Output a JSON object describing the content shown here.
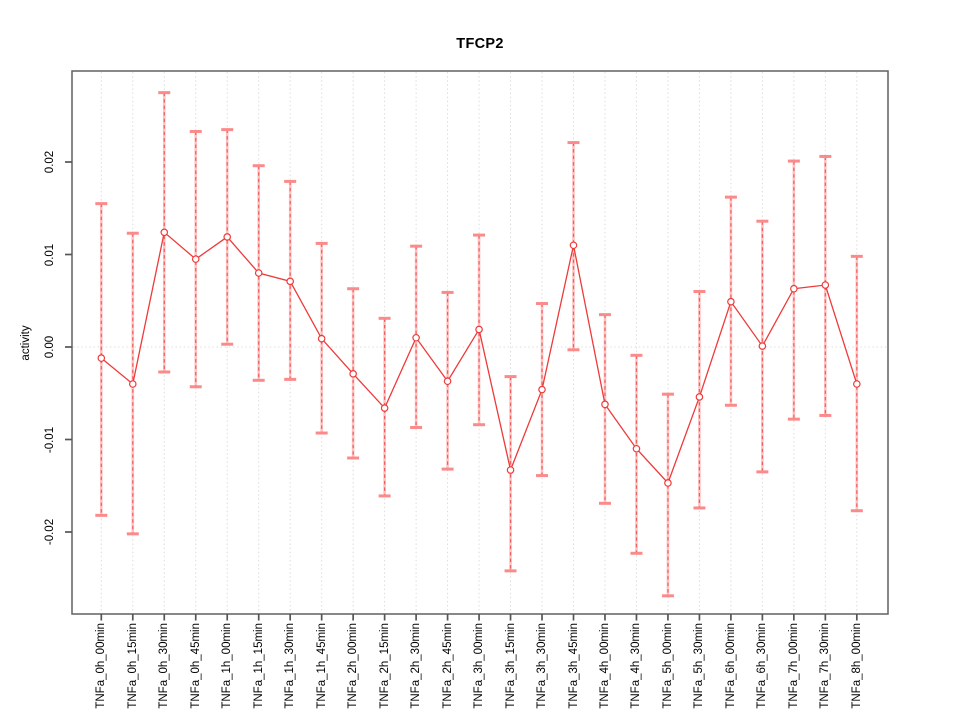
{
  "figure": {
    "title": "TFCP2"
  },
  "chart_data": {
    "type": "scatter",
    "title": "TFCP2",
    "xlabel": "",
    "ylabel": "activity",
    "legend": "none",
    "grid": "vertical dotted gridline at each category; dotted horizontal line at y=0",
    "ylim": [
      -0.0289,
      0.0298
    ],
    "yticks": [
      -0.02,
      -0.01,
      0,
      0.01,
      0.02
    ],
    "ytick_labels": [
      "-0.02",
      "-0.01",
      "0.00",
      "0.01",
      "0.02"
    ],
    "categories": [
      "TNFa_0h_00min",
      "TNFa_0h_15min",
      "TNFa_0h_30min",
      "TNFa_0h_45min",
      "TNFa_1h_00min",
      "TNFa_1h_15min",
      "TNFa_1h_30min",
      "TNFa_1h_45min",
      "TNFa_2h_00min",
      "TNFa_2h_15min",
      "TNFa_2h_30min",
      "TNFa_2h_45min",
      "TNFa_3h_00min",
      "TNFa_3h_15min",
      "TNFa_3h_30min",
      "TNFa_3h_45min",
      "TNFa_4h_00min",
      "TNFa_4h_30min",
      "TNFa_5h_00min",
      "TNFa_5h_30min",
      "TNFa_6h_00min",
      "TNFa_6h_30min",
      "TNFa_7h_00min",
      "TNFa_7h_30min",
      "TNFa_8h_00min"
    ],
    "series": [
      {
        "name": "activity",
        "marker": "open-circle",
        "values": [
          -0.0012,
          -0.004,
          0.0124,
          0.0095,
          0.0119,
          0.008,
          0.0071,
          0.0009,
          -0.0029,
          -0.0066,
          0.001,
          -0.0037,
          0.0019,
          -0.0133,
          -0.0046,
          0.011,
          -0.0062,
          -0.011,
          -0.0147,
          -0.0054,
          0.0049,
          0.0001,
          0.0063,
          0.0067,
          -0.004
        ],
        "error_high": [
          0.0155,
          0.0123,
          0.0275,
          0.0233,
          0.0235,
          0.0196,
          0.0179,
          0.0112,
          0.0063,
          0.0031,
          0.0109,
          0.0059,
          0.0121,
          -0.0032,
          0.0047,
          0.0221,
          0.0035,
          -0.0009,
          -0.0051,
          0.006,
          0.0162,
          0.0136,
          0.0201,
          0.0206,
          0.0098
        ],
        "error_low": [
          -0.0182,
          -0.0202,
          -0.0027,
          -0.0043,
          0.0003,
          -0.0036,
          -0.0035,
          -0.0093,
          -0.012,
          -0.0161,
          -0.0087,
          -0.0132,
          -0.0084,
          -0.0242,
          -0.0139,
          -0.0003,
          -0.0169,
          -0.0223,
          -0.0269,
          -0.0174,
          -0.0063,
          -0.0135,
          -0.0078,
          -0.0074,
          -0.0177
        ]
      }
    ],
    "colors": {
      "series_line": "#ee3a3a",
      "marker_stroke": "#ee3a3a",
      "error_bar_base": "#ffc2c2",
      "error_bar_dash": "#ee5f5f",
      "error_bar_cap": "#fb8b8b",
      "grid": "#dcdcdc",
      "zero_line": "#dedede",
      "frame": "#606060",
      "tick": "#555555",
      "text": "#000000",
      "background": "#ffffff"
    }
  }
}
